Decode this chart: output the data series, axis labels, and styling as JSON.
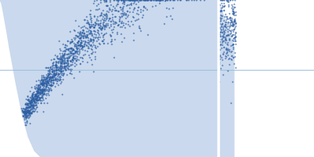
{
  "background_color": "#ffffff",
  "fill_color": "#cad9ed",
  "fill_color2": "#d5e3f2",
  "scatter_color": "#2e5fa3",
  "vline_x": 0.695,
  "hline_y": 0.555,
  "xlim": [
    0.0,
    1.0
  ],
  "ylim": [
    0.0,
    1.0
  ],
  "seed": 42,
  "n_main": 2000,
  "n_extra": 300
}
